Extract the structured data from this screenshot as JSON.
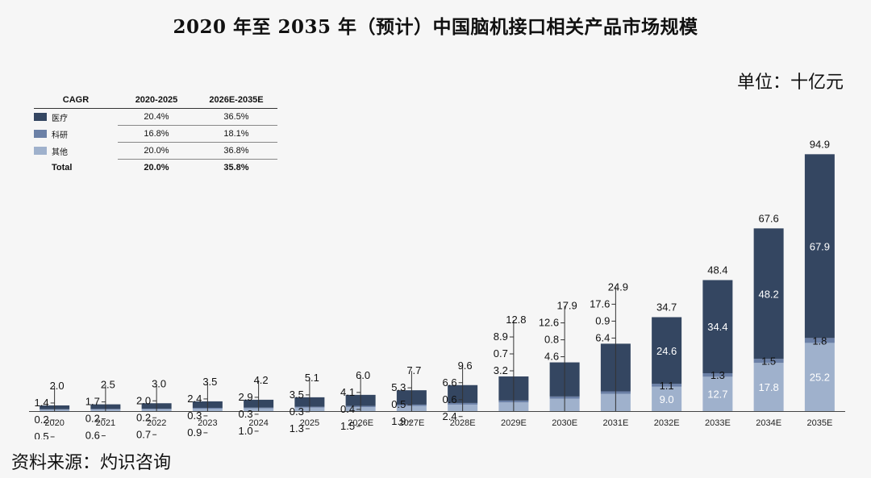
{
  "title": "2020 年至 2035 年（预计）中国脑机接口相关产品市场规模",
  "unit": "单位：十亿元",
  "source": "资料来源：灼识咨询",
  "colors": {
    "medical": "#344661",
    "research": "#6b80a6",
    "other": "#9fb1cc",
    "leader": "#333333",
    "background": "#f6f6f6"
  },
  "table": {
    "headers": [
      "CAGR",
      "2020-2025",
      "2026E-2035E"
    ],
    "rows": [
      {
        "label": "医疗",
        "color_key": "medical",
        "c1": "20.4%",
        "c2": "36.5%"
      },
      {
        "label": "科研",
        "color_key": "research",
        "c1": "16.8%",
        "c2": "18.1%"
      },
      {
        "label": "其他",
        "color_key": "other",
        "c1": "20.0%",
        "c2": "36.8%"
      }
    ],
    "total": {
      "label": "Total",
      "c1": "20.0%",
      "c2": "35.8%"
    }
  },
  "chart_data": {
    "type": "bar",
    "stacked": true,
    "categories": [
      "2020",
      "2021",
      "2022",
      "2023",
      "2024",
      "2025",
      "2026E",
      "2027E",
      "2028E",
      "2029E",
      "2030E",
      "2031E",
      "2032E",
      "2033E",
      "2034E",
      "2035E"
    ],
    "series": [
      {
        "name": "其他",
        "values": [
          0.5,
          0.6,
          0.7,
          0.9,
          1.0,
          1.3,
          1.5,
          1.9,
          2.4,
          3.2,
          4.6,
          6.4,
          9.0,
          12.7,
          17.8,
          25.2
        ]
      },
      {
        "name": "科研",
        "values": [
          0.2,
          0.2,
          0.2,
          0.3,
          0.3,
          0.3,
          0.4,
          0.5,
          0.6,
          0.7,
          0.8,
          0.9,
          1.1,
          1.3,
          1.5,
          1.8
        ]
      },
      {
        "name": "医疗",
        "values": [
          1.4,
          1.7,
          2.0,
          2.4,
          2.9,
          3.5,
          4.1,
          5.3,
          6.6,
          8.9,
          12.6,
          17.6,
          24.6,
          34.4,
          48.2,
          67.9
        ]
      }
    ],
    "totals": [
      2.0,
      2.5,
      3.0,
      3.5,
      4.2,
      5.1,
      6.0,
      7.7,
      9.6,
      12.8,
      17.9,
      24.9,
      34.7,
      48.4,
      67.6,
      94.9
    ],
    "display_labels": {
      "other": [
        "0.5",
        "0.6",
        "0.7",
        "0.9",
        "1.0",
        "1.3",
        "1.5",
        "1.9",
        "2.4",
        "3.2",
        "4.6",
        "6.4",
        "9.0",
        "12.7",
        "17.8",
        "25.2"
      ],
      "research": [
        "0.2",
        "0.2",
        "0.2",
        "0.3",
        "0.3",
        "0.3",
        "0.4",
        "0.5",
        "0.6",
        "0.7",
        "0.8",
        "0.9",
        "1.1",
        "1.3",
        "1.5",
        "1.8"
      ],
      "medical": [
        "1.4",
        "1.7",
        "2.0",
        "2.4",
        "2.9",
        "3.5",
        "4.1",
        "5.3",
        "6.6",
        "8.9",
        "12.6",
        "17.6",
        "24.6",
        "34.4",
        "48.2",
        "67.9"
      ],
      "total": [
        "2.0",
        "2.5",
        "3.0",
        "3.5",
        "4.2",
        "5.1",
        "6.0",
        "7.7",
        "9.6",
        "12.8",
        "17.9",
        "24.9",
        "34.7",
        "48.4",
        "67.6",
        "94.9"
      ]
    },
    "ylim": [
      0,
      95
    ],
    "grid": false,
    "legend": "top-left table"
  }
}
